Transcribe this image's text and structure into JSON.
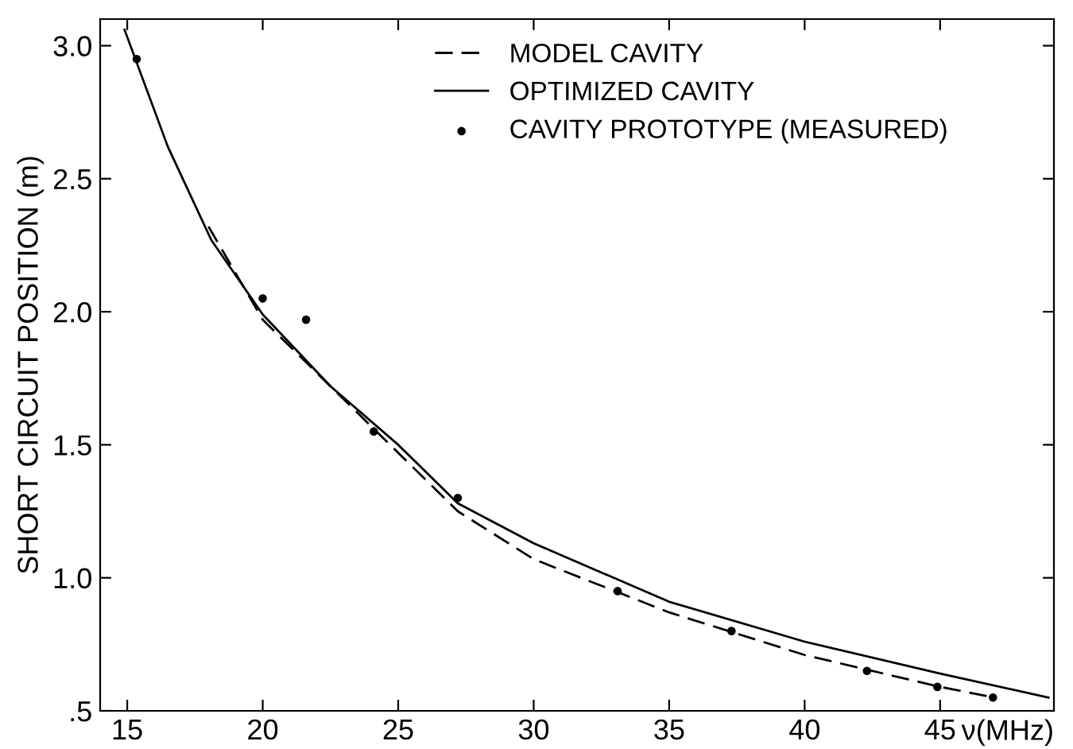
{
  "chart_data": {
    "type": "line",
    "xlabel": "ν(MHz)",
    "ylabel": "SHORT CIRCUIT POSITION (m)",
    "xlim": [
      14,
      49.2
    ],
    "ylim": [
      0.5,
      3.1
    ],
    "xticks": [
      15,
      20,
      25,
      30,
      35,
      40,
      45
    ],
    "yticks": [
      {
        "value": 0.5,
        "label": ".5"
      },
      {
        "value": 1.0,
        "label": "1.0"
      },
      {
        "value": 1.5,
        "label": "1.5"
      },
      {
        "value": 2.0,
        "label": "2.0"
      },
      {
        "value": 2.5,
        "label": "2.5"
      },
      {
        "value": 3.0,
        "label": "3.0"
      }
    ],
    "grid": false,
    "legend": "top",
    "series": [
      {
        "name": "MODEL CAVITY",
        "line_style": "dashed",
        "color": "#000000",
        "x": [
          18,
          20,
          25,
          27.2,
          30,
          35,
          40,
          45,
          47
        ],
        "values": [
          2.32,
          1.97,
          1.47,
          1.25,
          1.07,
          0.87,
          0.71,
          0.59,
          0.55
        ]
      },
      {
        "name": "OPTIMIZED CAVITY",
        "line_style": "solid",
        "color": "#000000",
        "x": [
          14.9,
          16.5,
          18.1,
          20,
          22.5,
          25,
          27.2,
          30,
          35,
          40,
          45,
          49
        ],
        "values": [
          3.06,
          2.62,
          2.27,
          1.99,
          1.72,
          1.5,
          1.28,
          1.13,
          0.91,
          0.76,
          0.64,
          0.55
        ]
      },
      {
        "name": "CAVITY PROTOTYPE (MEASURED)",
        "type": "scatter",
        "marker": "circle",
        "color": "#000000",
        "x": [
          15.35,
          20.0,
          21.6,
          24.1,
          27.2,
          33.1,
          37.3,
          42.3,
          44.9,
          46.95
        ],
        "values": [
          2.95,
          2.05,
          1.97,
          1.55,
          1.3,
          0.95,
          0.8,
          0.65,
          0.59,
          0.55
        ]
      }
    ]
  }
}
